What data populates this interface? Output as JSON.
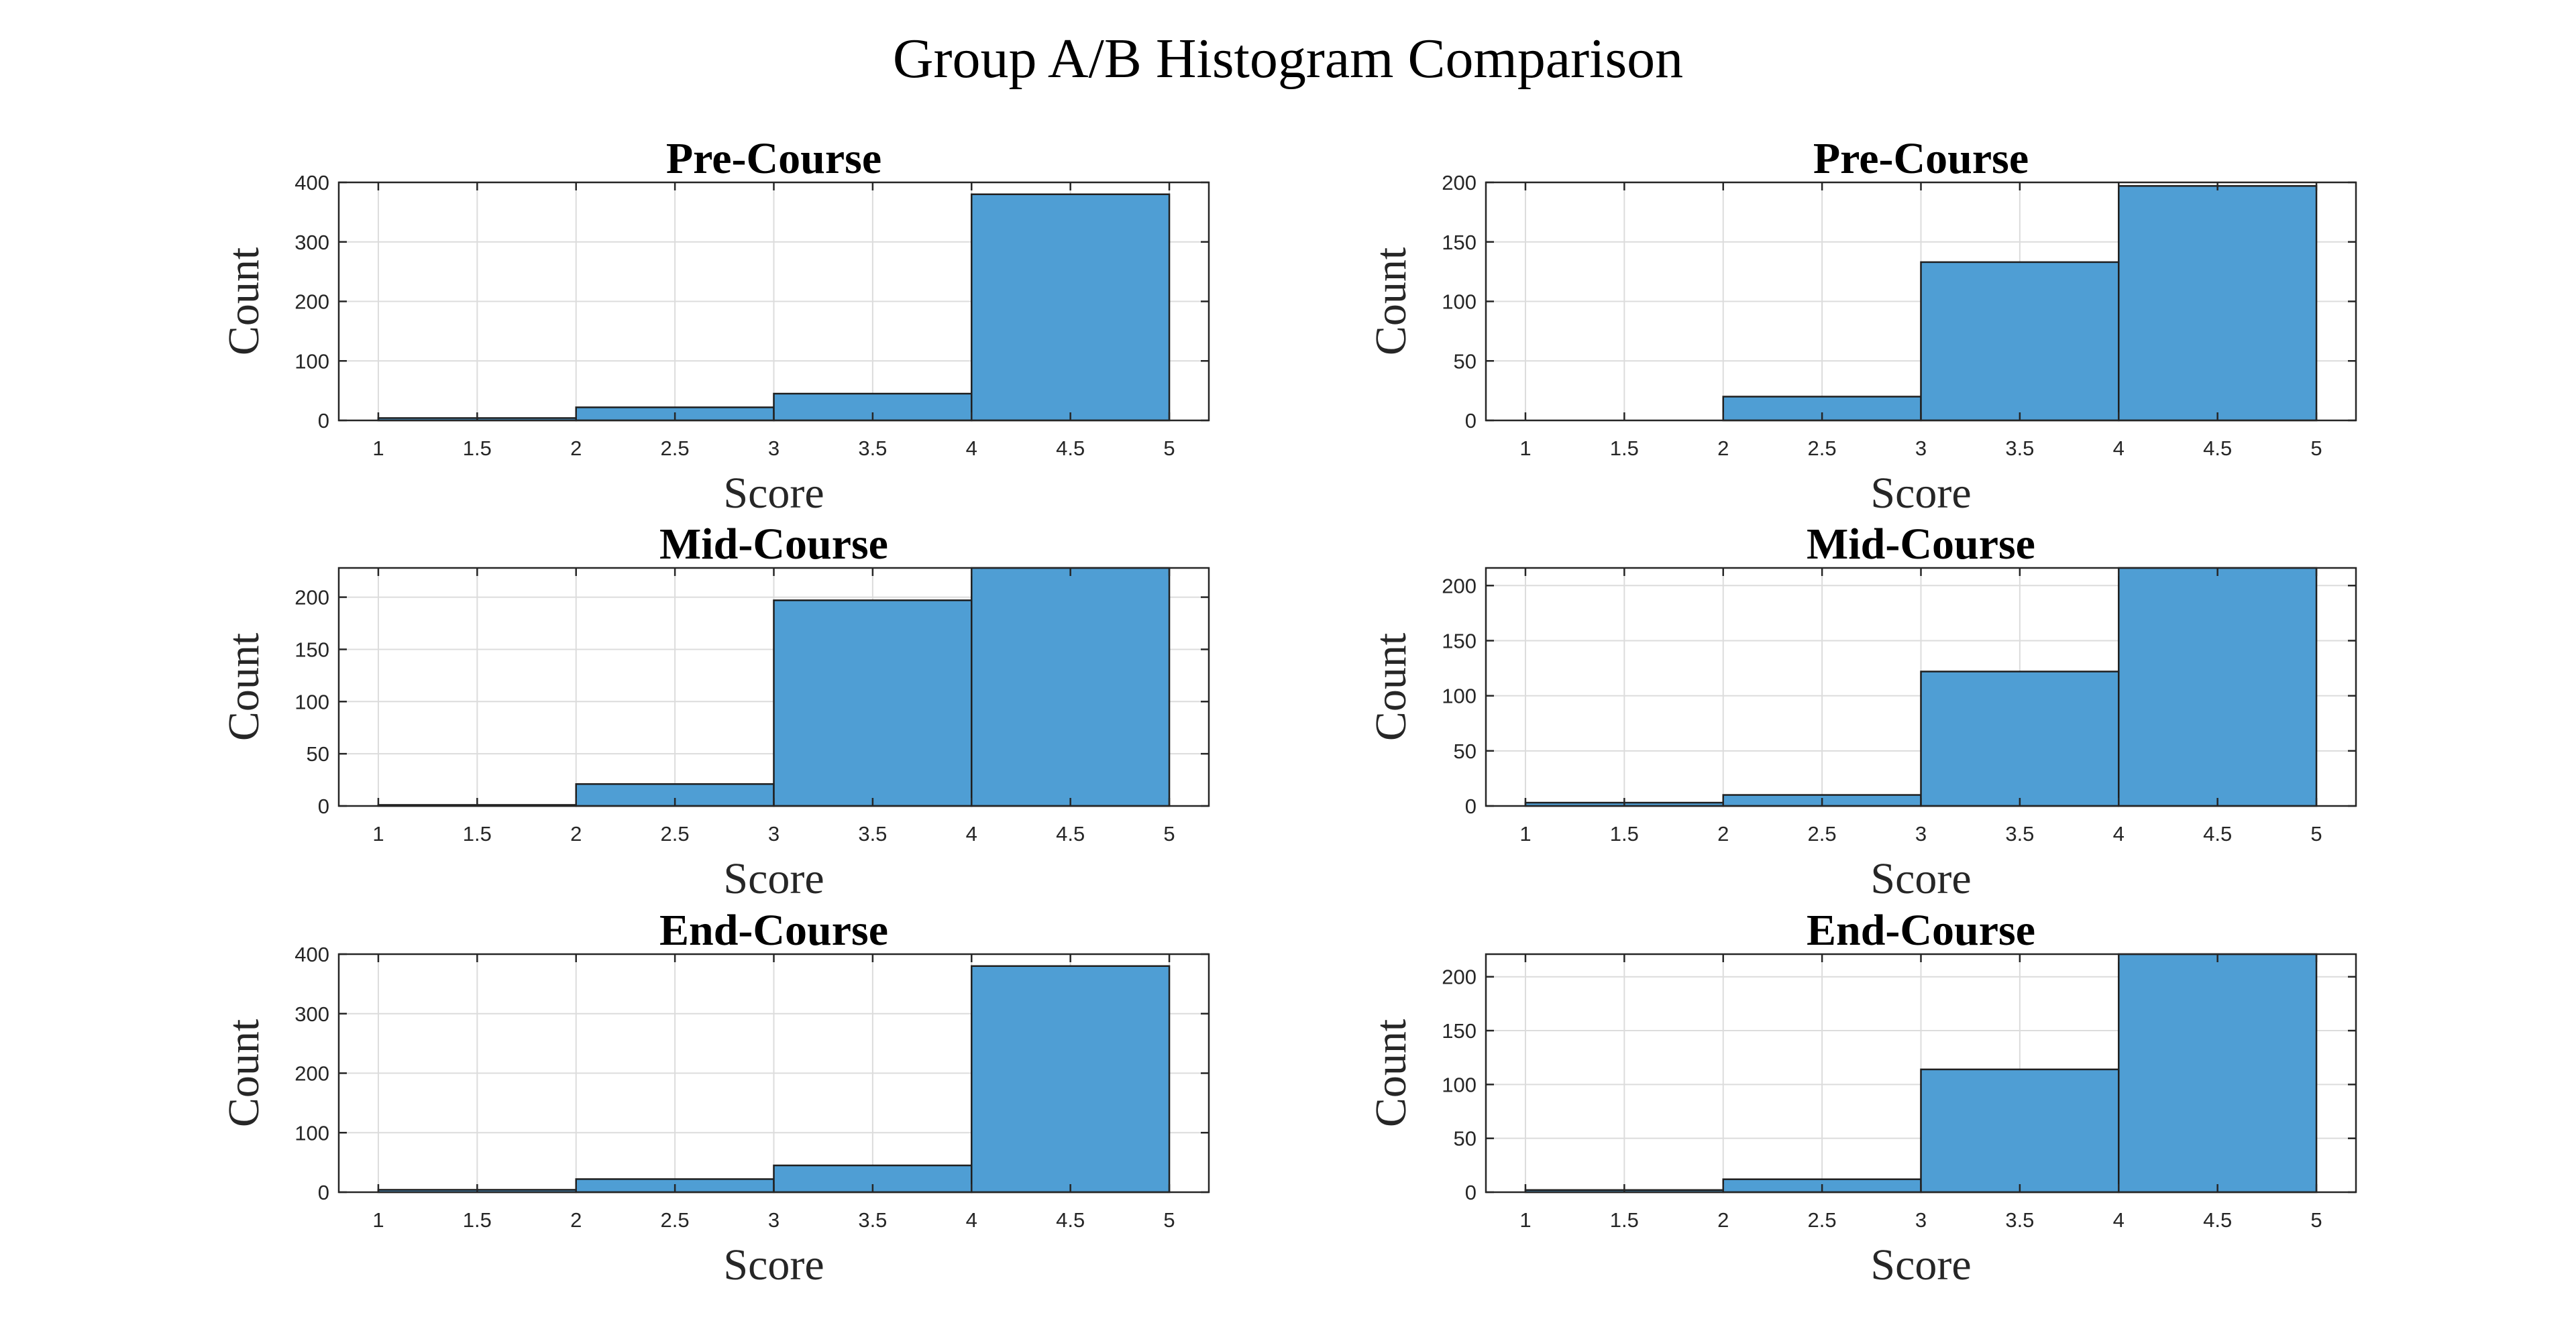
{
  "title": "Group A/B Histogram Comparison",
  "colors": {
    "bar_fill": "#4f9ed4",
    "bar_edge": "#1f1f1f",
    "grid": "#dcdcdc",
    "axis": "#262626"
  },
  "chart_data": [
    {
      "type": "bar",
      "title": "Pre-Course",
      "xlabel": "Score",
      "ylabel": "Count",
      "bin_edges": [
        1,
        2,
        3,
        4,
        5
      ],
      "values": [
        4,
        22,
        45,
        380
      ],
      "xlim": [
        0.8,
        5.2
      ],
      "ylim": [
        0,
        400
      ],
      "xticks": [
        "1",
        "1.5",
        "2",
        "2.5",
        "3",
        "3.5",
        "4",
        "4.5",
        "5"
      ],
      "yticks": [
        "0",
        "100",
        "200",
        "300",
        "400"
      ],
      "grid": true
    },
    {
      "type": "bar",
      "title": "Pre-Course",
      "xlabel": "Score",
      "ylabel": "Count",
      "bin_edges": [
        1,
        2,
        3,
        4,
        5
      ],
      "values": [
        0,
        20,
        133,
        197
      ],
      "xlim": [
        0.8,
        5.2
      ],
      "ylim": [
        0,
        200
      ],
      "xticks": [
        "1",
        "1.5",
        "2",
        "2.5",
        "3",
        "3.5",
        "4",
        "4.5",
        "5"
      ],
      "yticks": [
        "0",
        "50",
        "100",
        "150",
        "200"
      ],
      "grid": true
    },
    {
      "type": "bar",
      "title": "Mid-Course",
      "xlabel": "Score",
      "ylabel": "Count",
      "bin_edges": [
        1,
        2,
        3,
        4,
        5
      ],
      "values": [
        1,
        21,
        197,
        228
      ],
      "xlim": [
        0.8,
        5.2
      ],
      "ylim": [
        0,
        228
      ],
      "xticks": [
        "1",
        "1.5",
        "2",
        "2.5",
        "3",
        "3.5",
        "4",
        "4.5",
        "5"
      ],
      "yticks": [
        "0",
        "50",
        "100",
        "150",
        "200"
      ],
      "grid": true
    },
    {
      "type": "bar",
      "title": "Mid-Course",
      "xlabel": "Score",
      "ylabel": "Count",
      "bin_edges": [
        1,
        2,
        3,
        4,
        5
      ],
      "values": [
        3,
        10,
        122,
        216
      ],
      "xlim": [
        0.8,
        5.2
      ],
      "ylim": [
        0,
        216
      ],
      "xticks": [
        "1",
        "1.5",
        "2",
        "2.5",
        "3",
        "3.5",
        "4",
        "4.5",
        "5"
      ],
      "yticks": [
        "0",
        "50",
        "100",
        "150",
        "200"
      ],
      "grid": true
    },
    {
      "type": "bar",
      "title": "End-Course",
      "xlabel": "Score",
      "ylabel": "Count",
      "bin_edges": [
        1,
        2,
        3,
        4,
        5
      ],
      "values": [
        4,
        22,
        45,
        380
      ],
      "xlim": [
        0.8,
        5.2
      ],
      "ylim": [
        0,
        400
      ],
      "xticks": [
        "1",
        "1.5",
        "2",
        "2.5",
        "3",
        "3.5",
        "4",
        "4.5",
        "5"
      ],
      "yticks": [
        "0",
        "100",
        "200",
        "300",
        "400"
      ],
      "grid": true
    },
    {
      "type": "bar",
      "title": "End-Course",
      "xlabel": "Score",
      "ylabel": "Count",
      "bin_edges": [
        1,
        2,
        3,
        4,
        5
      ],
      "values": [
        2,
        12,
        114,
        221
      ],
      "xlim": [
        0.8,
        5.2
      ],
      "ylim": [
        0,
        221
      ],
      "xticks": [
        "1",
        "1.5",
        "2",
        "2.5",
        "3",
        "3.5",
        "4",
        "4.5",
        "5"
      ],
      "yticks": [
        "0",
        "50",
        "100",
        "150",
        "200"
      ],
      "grid": true
    }
  ]
}
